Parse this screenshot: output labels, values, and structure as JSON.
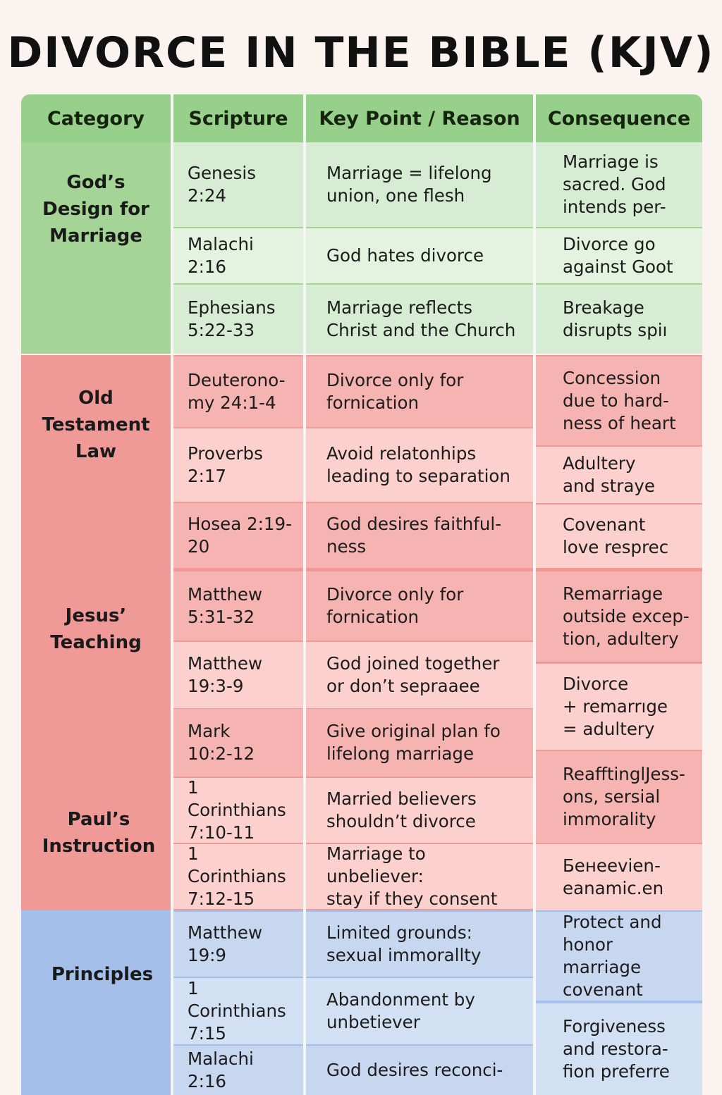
{
  "title": "DIVORCE IN THE BIBLE (KJV)",
  "headers": [
    "Category",
    "Scripture",
    "Key Point / Reason",
    "Consequence"
  ],
  "colors": {
    "header": "#97d08b",
    "green_category": "#a4d596",
    "green_rows": [
      "#d6ecd3",
      "#e3f3e0",
      "#d6ecd3"
    ],
    "red_category": "#ef9a97",
    "red_rows": [
      "#f5b4b1",
      "#fbd0cd"
    ],
    "blue_category": "#a3bfea",
    "blue_rows": [
      "#c7d7ef",
      "#d2e0f3"
    ]
  },
  "categories": [
    {
      "label": "God’s\nDesign for\nMarriage"
    },
    {
      "label": "Old\nTestament\nLaw"
    },
    {
      "label": "Jesus’\nTeaching"
    },
    {
      "label": "Paul’s\nInstruction"
    },
    {
      "label": "Principles"
    }
  ],
  "rows": [
    {
      "scripture": "Genesis 2:24",
      "key_point": "Marriage = lifelong\nunion, one flesh"
    },
    {
      "scripture": "Malachi 2:16",
      "key_point": "God hates divorce"
    },
    {
      "scripture": "Ephesians\n5:22-33",
      "key_point": "Marriage reflects\nChrist and the Church"
    },
    {
      "scripture": "Deuterono-\nmy 24:1-4",
      "key_point": "Divorce only for\nfornication"
    },
    {
      "scripture": "Proverbs\n2:17",
      "key_point": "Avoid relatonhips\nleading to separation"
    },
    {
      "scripture": "Hosea 2:19-\n20",
      "key_point": "God desires faithful-\nness"
    },
    {
      "scripture": "Matthew\n5:31-32",
      "key_point": "Divorce only for\nfornication"
    },
    {
      "scripture": "Matthew\n19:3-9",
      "key_point": "God joined together\nor don’t sepraaee"
    },
    {
      "scripture": "Mark\n10:2-12",
      "key_point": "Give original plan fo\nlifelong marriage"
    },
    {
      "scripture": "1 Corinthians\n7:10-11",
      "key_point": "Married believers\nshouldn’t divorce"
    },
    {
      "scripture": "1 Corinthians\n7:12-15",
      "key_point": "Marriage to unbeliever:\nstay if they consent"
    },
    {
      "scripture": "Matthew 19:9",
      "key_point": "Limited grounds:\nsexual immorallty"
    },
    {
      "scripture": "1 Corinthians\n7:15",
      "key_point": "Abandonment by\nunbetiever"
    },
    {
      "scripture": "Malachi 2:16",
      "key_point": "God desires reconci-"
    }
  ],
  "consequences": [
    "Marriage is\nsacred. God\nintends per-",
    "Divorce go\nagainst Goot",
    "Breakage\ndisrupts spiı",
    "Concession\ndue to hard-\nness of heart",
    "Adultery\nand straye",
    "Covenant\nlove resprec",
    "Remarriage\noutside excep-\ntion, adultery",
    "Divorce\n+ remarrıge\n= adultery",
    "ReafftinglJess-\nons, sersial\nimmorality",
    "Бенееviеn-\neanamic.en",
    "Protect and\nhonor marriage\ncovenant",
    "Forgiveness\nand restora-\nfion preferre"
  ]
}
